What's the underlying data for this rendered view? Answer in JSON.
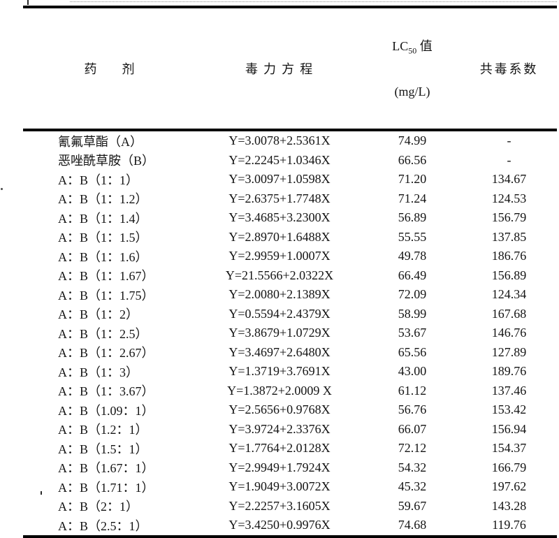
{
  "page": {
    "background": "#ffffff",
    "text_color": "#141414",
    "rule_color": "#000000"
  },
  "table": {
    "headers": {
      "agent": "药　　剂",
      "equation": "毒 力 方 程",
      "lc50": {
        "prefix": "LC",
        "sub": "50",
        "suffix": " 值",
        "unit": "(mg/L)"
      },
      "ctc": "共毒系数"
    },
    "rows": [
      {
        "agent": "氰氟草酯（A）",
        "equation": "Y=3.0078+2.5361X",
        "lc50": "74.99",
        "ctc": "-"
      },
      {
        "agent": "恶唑酰草胺（B）",
        "equation": "Y=2.2245+1.0346X",
        "lc50": "66.56",
        "ctc": "-"
      },
      {
        "agent": "A：B（1：1）",
        "equation": "Y=3.0097+1.0598X",
        "lc50": "71.20",
        "ctc": "134.67"
      },
      {
        "agent": "A：B（1：1.2）",
        "equation": "Y=2.6375+1.7748X",
        "lc50": "71.24",
        "ctc": "124.53"
      },
      {
        "agent": "A：B（1：1.4）",
        "equation": "Y=3.4685+3.2300X",
        "lc50": "56.89",
        "ctc": "156.79"
      },
      {
        "agent": "A：B（1：1.5）",
        "equation": "Y=2.8970+1.6488X",
        "lc50": "55.55",
        "ctc": "137.85"
      },
      {
        "agent": "A：B（1：1.6）",
        "equation": "Y=2.9959+1.0007X",
        "lc50": "49.78",
        "ctc": "186.76"
      },
      {
        "agent": "A：B（1：1.67）",
        "equation": "Y=21.5566+2.0322X",
        "lc50": "66.49",
        "ctc": "156.89"
      },
      {
        "agent": "A：B（1：1.75）",
        "equation": "Y=2.0080+2.1389X",
        "lc50": "72.09",
        "ctc": "124.34"
      },
      {
        "agent": "A：B（1：2）",
        "equation": "Y=0.5594+2.4379X",
        "lc50": "58.99",
        "ctc": "167.68"
      },
      {
        "agent": "A：B（1：2.5）",
        "equation": "Y=3.8679+1.0729X",
        "lc50": "53.67",
        "ctc": "146.76"
      },
      {
        "agent": "A：B（1：2.67）",
        "equation": "Y=3.4697+2.6480X",
        "lc50": "65.56",
        "ctc": "127.89"
      },
      {
        "agent": "A：B（1：3）",
        "equation": "Y=1.3719+3.7691X",
        "lc50": "43.00",
        "ctc": "189.76"
      },
      {
        "agent": "A：B（1：3.67）",
        "equation": "Y=1.3872+2.0009 X",
        "lc50": "61.12",
        "ctc": "137.46"
      },
      {
        "agent": "A：B（1.09：1）",
        "equation": "Y=2.5656+0.9768X",
        "lc50": "56.76",
        "ctc": "153.42"
      },
      {
        "agent": "A：B（1.2：1）",
        "equation": "Y=3.9724+2.3376X",
        "lc50": "66.07",
        "ctc": "156.94"
      },
      {
        "agent": "A：B（1.5：1）",
        "equation": "Y=1.7764+2.0128X",
        "lc50": "72.12",
        "ctc": "154.37"
      },
      {
        "agent": "A：B（1.67：1）",
        "equation": "Y=2.9949+1.7924X",
        "lc50": "54.32",
        "ctc": "166.79"
      },
      {
        "agent": "A：B（1.71：1）",
        "equation": "Y=1.9049+3.0072X",
        "lc50": "45.32",
        "ctc": "197.62"
      },
      {
        "agent": "A：B（2：1）",
        "equation": "Y=2.2257+3.1605X",
        "lc50": "59.67",
        "ctc": "143.28"
      },
      {
        "agent": "A：B（2.5：1）",
        "equation": "Y=3.4250+0.9976X",
        "lc50": "74.68",
        "ctc": "119.76"
      }
    ]
  }
}
